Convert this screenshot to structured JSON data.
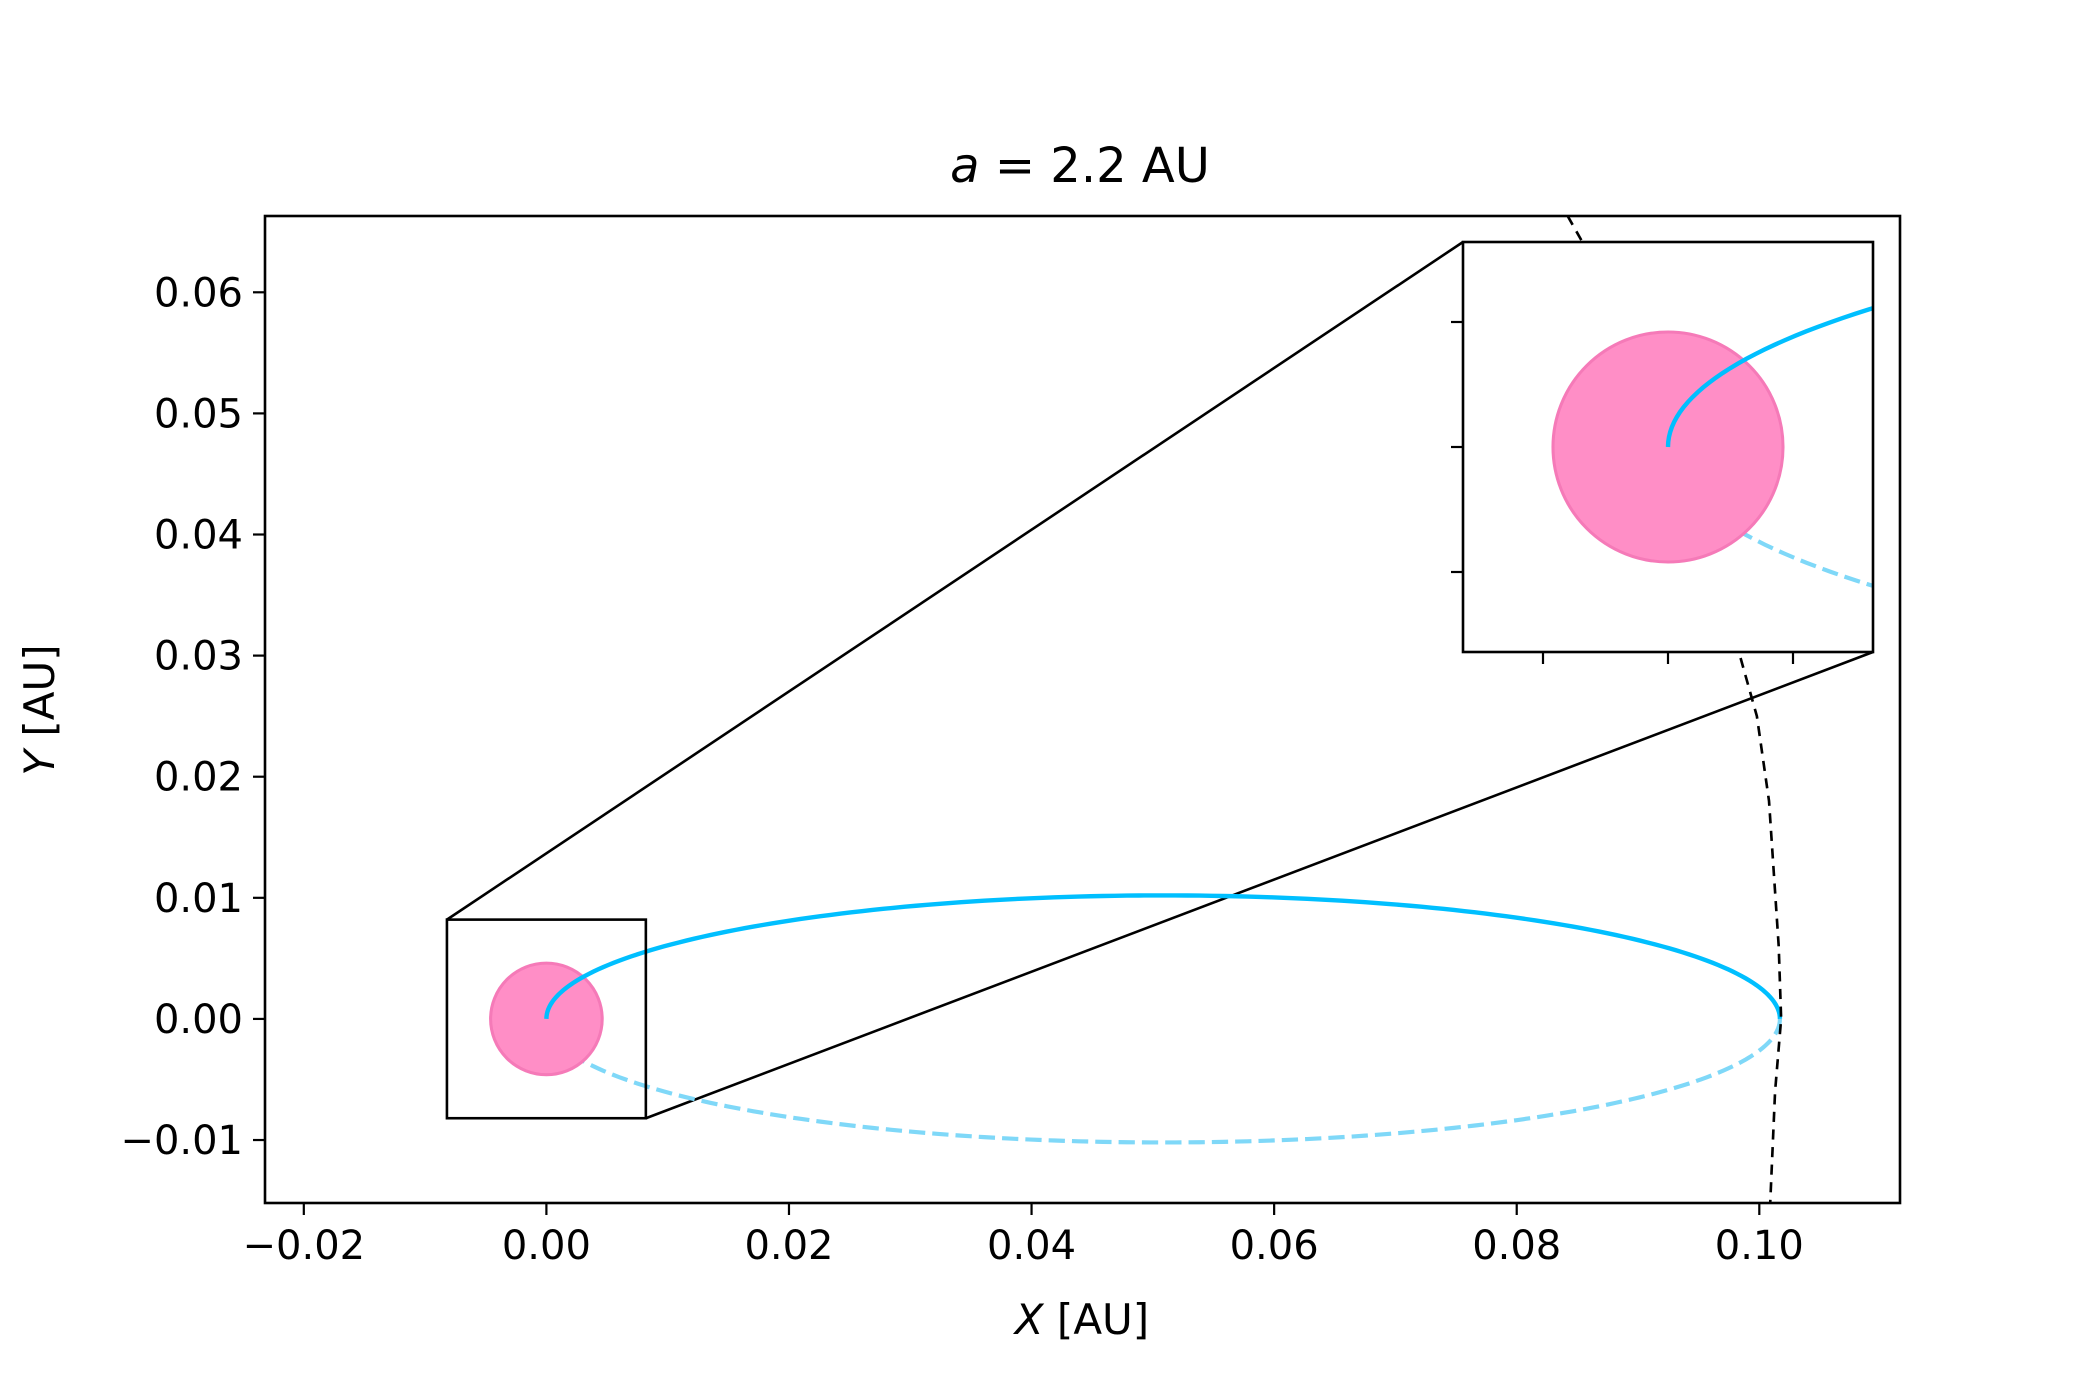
{
  "chart_data": {
    "type": "line",
    "title": {
      "prefix": "a",
      "suffix": " = 2.2 AU"
    },
    "xlabel": {
      "var": "X",
      "unit": " [AU]"
    },
    "ylabel": {
      "var": "Y",
      "unit": " [AU]"
    },
    "xlim": [
      -0.0232,
      0.1116
    ],
    "ylim": [
      -0.0152,
      0.0663
    ],
    "xticks": [
      -0.02,
      0.0,
      0.02,
      0.04,
      0.06,
      0.08,
      0.1
    ],
    "xtick_labels": [
      "−0.02",
      "0.00",
      "0.02",
      "0.04",
      "0.06",
      "0.08",
      "0.10"
    ],
    "yticks": [
      -0.01,
      0.0,
      0.01,
      0.02,
      0.03,
      0.04,
      0.05,
      0.06
    ],
    "ytick_labels": [
      "−0.01",
      "0.00",
      "0.01",
      "0.02",
      "0.03",
      "0.04",
      "0.05",
      "0.06"
    ],
    "grid": false,
    "legend": "none",
    "orbit": {
      "center_x": 0.05085,
      "center_y": 0.0,
      "semi_major": 0.05085,
      "semi_minor": 0.0102,
      "front_color": "#00bfff",
      "back_color": "#7fd8f8",
      "front_style": "solid",
      "back_style": "dashed"
    },
    "star": {
      "x": 0.0,
      "y": 0.0,
      "radius": 0.0046,
      "fill_color": "#ff8ec6",
      "edge_color": "#f57ab8"
    },
    "boundary_curve": {
      "style": "dashed",
      "color": "#000000",
      "x": [
        0.0842,
        0.0855,
        0.0869,
        0.0882,
        0.0894,
        0.0905,
        0.0931,
        0.0948,
        0.0966,
        0.0984,
        0.0998,
        0.1008,
        0.1016,
        0.1018,
        0.1013,
        0.1009
      ],
      "y": [
        0.0663,
        0.064,
        0.061,
        0.058,
        0.055,
        0.052,
        0.045,
        0.04,
        0.035,
        0.03,
        0.025,
        0.018,
        0.006,
        0.0,
        -0.006,
        -0.0152
      ]
    },
    "inset": {
      "xlim": [
        -0.0082,
        0.0082
      ],
      "ylim": [
        -0.0082,
        0.0082
      ],
      "source_region": {
        "x0": -0.0082,
        "x1": 0.0082,
        "y0": -0.0082,
        "y1": 0.0082
      },
      "tick_values": [
        -0.005,
        0.0,
        0.005
      ],
      "tick_labels_shown": false
    }
  }
}
